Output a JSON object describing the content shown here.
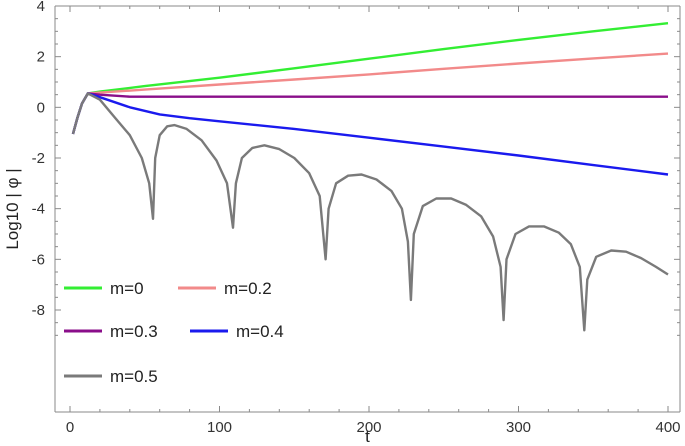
{
  "chart_data": {
    "type": "line",
    "title": "",
    "xlabel": "t",
    "ylabel": "Log10 | φ |",
    "xlim": [
      0,
      400
    ],
    "ylim": [
      -9.5,
      4
    ],
    "x_ticks": [
      0,
      100,
      200,
      300,
      400
    ],
    "y_ticks": [
      -8,
      -6,
      -4,
      -2,
      0,
      2,
      4
    ],
    "x_tick_labels": [
      "0",
      "100",
      "200",
      "300",
      "400"
    ],
    "y_tick_labels": [
      "-8",
      "-6",
      "-4",
      "-2",
      "0",
      "2",
      "4"
    ],
    "grid": false,
    "legend": "bottom-left, inside",
    "series": [
      {
        "name": "m=0",
        "color": "#33ee33",
        "points": [
          [
            2,
            -1.05
          ],
          [
            5,
            -0.4
          ],
          [
            8,
            0.15
          ],
          [
            12,
            0.55
          ],
          [
            20,
            0.62
          ],
          [
            50,
            0.84
          ],
          [
            100,
            1.17
          ],
          [
            150,
            1.54
          ],
          [
            200,
            1.92
          ],
          [
            250,
            2.3
          ],
          [
            300,
            2.66
          ],
          [
            350,
            3.0
          ],
          [
            400,
            3.32
          ]
        ]
      },
      {
        "name": "m=0.2",
        "color": "#f28a8a",
        "points": [
          [
            2,
            -1.05
          ],
          [
            5,
            -0.4
          ],
          [
            8,
            0.15
          ],
          [
            12,
            0.55
          ],
          [
            20,
            0.58
          ],
          [
            50,
            0.7
          ],
          [
            100,
            0.9
          ],
          [
            150,
            1.1
          ],
          [
            200,
            1.3
          ],
          [
            250,
            1.52
          ],
          [
            300,
            1.73
          ],
          [
            350,
            1.93
          ],
          [
            400,
            2.12
          ]
        ]
      },
      {
        "name": "m=0.3",
        "color": "#8a0e8a",
        "points": [
          [
            2,
            -1.05
          ],
          [
            5,
            -0.4
          ],
          [
            8,
            0.15
          ],
          [
            12,
            0.55
          ],
          [
            20,
            0.5
          ],
          [
            40,
            0.42
          ],
          [
            100,
            0.42
          ],
          [
            200,
            0.42
          ],
          [
            300,
            0.42
          ],
          [
            400,
            0.42
          ]
        ]
      },
      {
        "name": "m=0.4",
        "color": "#1a1aee",
        "points": [
          [
            2,
            -1.05
          ],
          [
            5,
            -0.4
          ],
          [
            8,
            0.15
          ],
          [
            12,
            0.55
          ],
          [
            20,
            0.4
          ],
          [
            40,
            0.0
          ],
          [
            60,
            -0.28
          ],
          [
            80,
            -0.43
          ],
          [
            100,
            -0.55
          ],
          [
            150,
            -0.85
          ],
          [
            200,
            -1.2
          ],
          [
            250,
            -1.55
          ],
          [
            300,
            -1.9
          ],
          [
            350,
            -2.28
          ],
          [
            400,
            -2.65
          ]
        ]
      },
      {
        "name": "m=0.5",
        "color": "#7a7a7a",
        "points": [
          [
            2,
            -1.05
          ],
          [
            5,
            -0.4
          ],
          [
            8,
            0.15
          ],
          [
            12,
            0.55
          ],
          [
            20,
            0.3
          ],
          [
            30,
            -0.4
          ],
          [
            40,
            -1.1
          ],
          [
            48,
            -2.0
          ],
          [
            53,
            -3.0
          ],
          [
            55.5,
            -4.4
          ],
          [
            57,
            -2.0
          ],
          [
            60,
            -1.1
          ],
          [
            65,
            -0.75
          ],
          [
            70,
            -0.7
          ],
          [
            78,
            -0.85
          ],
          [
            88,
            -1.3
          ],
          [
            98,
            -2.1
          ],
          [
            105,
            -3.0
          ],
          [
            109,
            -4.75
          ],
          [
            111,
            -3.0
          ],
          [
            115,
            -2.0
          ],
          [
            122,
            -1.6
          ],
          [
            130,
            -1.5
          ],
          [
            140,
            -1.65
          ],
          [
            150,
            -2.0
          ],
          [
            160,
            -2.6
          ],
          [
            167,
            -3.5
          ],
          [
            171,
            -6.0
          ],
          [
            173,
            -4.0
          ],
          [
            178,
            -3.0
          ],
          [
            186,
            -2.7
          ],
          [
            195,
            -2.65
          ],
          [
            205,
            -2.85
          ],
          [
            215,
            -3.3
          ],
          [
            222,
            -4.0
          ],
          [
            226,
            -5.3
          ],
          [
            228,
            -7.6
          ],
          [
            230,
            -5.0
          ],
          [
            236,
            -3.9
          ],
          [
            245,
            -3.6
          ],
          [
            255,
            -3.6
          ],
          [
            265,
            -3.85
          ],
          [
            275,
            -4.3
          ],
          [
            283,
            -5.1
          ],
          [
            288,
            -6.3
          ],
          [
            290,
            -8.4
          ],
          [
            292,
            -6.0
          ],
          [
            298,
            -5.0
          ],
          [
            307,
            -4.7
          ],
          [
            317,
            -4.7
          ],
          [
            327,
            -4.95
          ],
          [
            335,
            -5.4
          ],
          [
            341,
            -6.3
          ],
          [
            344,
            -8.8
          ],
          [
            346,
            -6.8
          ],
          [
            352,
            -5.9
          ],
          [
            362,
            -5.65
          ],
          [
            372,
            -5.7
          ],
          [
            382,
            -5.95
          ],
          [
            392,
            -6.3
          ],
          [
            400,
            -6.6
          ]
        ]
      }
    ]
  }
}
